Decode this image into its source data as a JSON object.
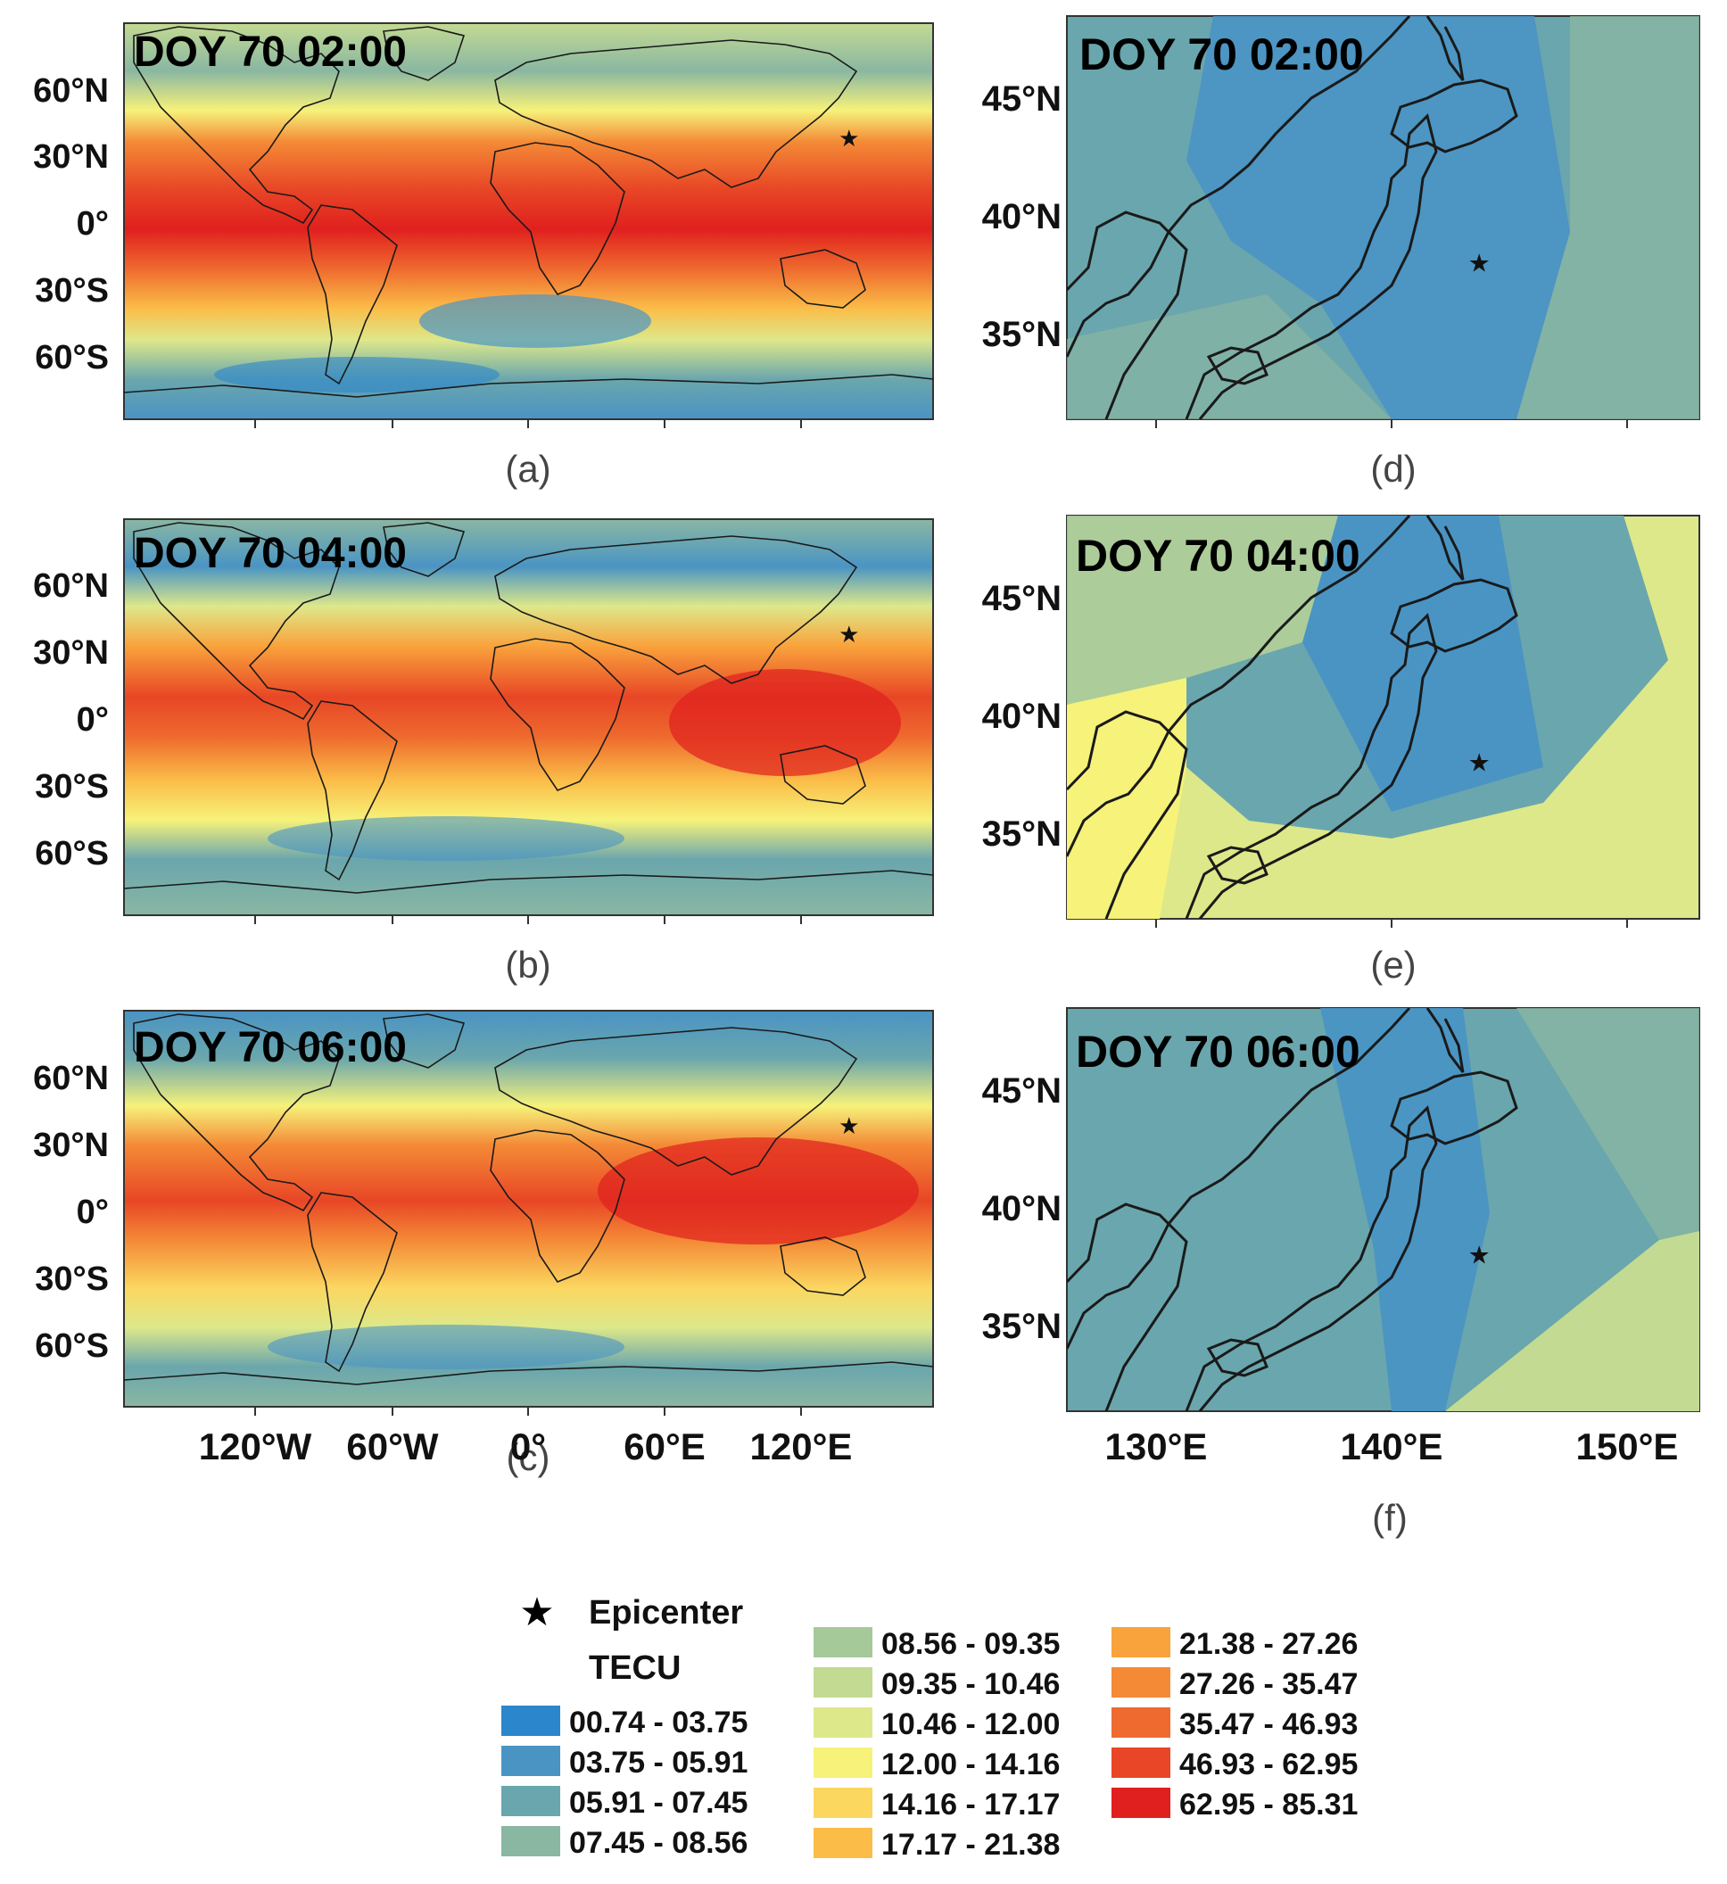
{
  "panels": [
    {
      "id": "a",
      "caption": "(a)",
      "title": "DOY 70 02:00",
      "type": "global"
    },
    {
      "id": "b",
      "caption": "(b)",
      "title": "DOY 70 04:00",
      "type": "global"
    },
    {
      "id": "c",
      "caption": "(c)",
      "title": "DOY 70 06:00",
      "type": "global"
    },
    {
      "id": "d",
      "caption": "(d)",
      "title": "DOY 70 02:00",
      "type": "regional"
    },
    {
      "id": "e",
      "caption": "(e)",
      "title": "DOY 70 04:00",
      "type": "regional"
    },
    {
      "id": "f",
      "caption": "(f)",
      "title": "DOY 70 06:00",
      "type": "regional"
    }
  ],
  "global_axes": {
    "lat_ticks": [
      "60°N",
      "30°N",
      "0°",
      "30°S",
      "60°S"
    ],
    "lon_ticks": [
      "120°W",
      "60°W",
      "0°",
      "60°E",
      "120°E"
    ]
  },
  "regional_axes": {
    "lat_ticks": [
      "45°N",
      "40°N",
      "35°N"
    ],
    "lon_ticks": [
      "130°E",
      "140°E",
      "150°E"
    ]
  },
  "epicenter": {
    "label": "Epicenter",
    "symbol": "★",
    "lat": 38.1,
    "lon": 142.6
  },
  "legend": {
    "title": "TECU",
    "classes": [
      {
        "range": "00.74 - 03.75",
        "color": "#2b86cc"
      },
      {
        "range": "03.75 - 05.91",
        "color": "#4a94c4"
      },
      {
        "range": "05.91 - 07.45",
        "color": "#6aa6ad"
      },
      {
        "range": "07.45 - 08.56",
        "color": "#8ab7a2"
      },
      {
        "range": "08.56 - 09.35",
        "color": "#a6c99a"
      },
      {
        "range": "09.35 - 10.46",
        "color": "#c3da92"
      },
      {
        "range": "10.46 - 12.00",
        "color": "#dde88a"
      },
      {
        "range": "12.00 - 14.16",
        "color": "#f6f27a"
      },
      {
        "range": "14.16 - 17.17",
        "color": "#fbd760"
      },
      {
        "range": "17.17 - 21.38",
        "color": "#fbbd48"
      },
      {
        "range": "21.38 - 27.26",
        "color": "#f9a33c"
      },
      {
        "range": "27.26 - 35.47",
        "color": "#f48a36"
      },
      {
        "range": "35.47 - 46.93",
        "color": "#ee6a2e"
      },
      {
        "range": "46.93 - 62.95",
        "color": "#e84626"
      },
      {
        "range": "62.95 - 85.31",
        "color": "#e0201e"
      }
    ]
  }
}
